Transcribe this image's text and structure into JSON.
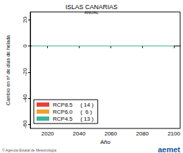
{
  "chart_data": {
    "type": "line",
    "title": "ISLAS CANARIAS",
    "subtitle": "ANUAL",
    "x_label": "Año",
    "y_label": "Cambio en nº de días de helada",
    "x": [
      2010,
      2020,
      2030,
      2040,
      2050,
      2060,
      2070,
      2080,
      2090,
      2100
    ],
    "series": [
      {
        "name": "RCP8.5     ( 14 )",
        "color": "#e8403a",
        "values": [
          0,
          0,
          0,
          0,
          0,
          0,
          0,
          0,
          0,
          0
        ]
      },
      {
        "name": "RCP6.0     (  6 )",
        "color": "#f0a030",
        "values": [
          0,
          0,
          0,
          0,
          0,
          0,
          0,
          0,
          0,
          0
        ]
      },
      {
        "name": "RCP4.5     ( 13 )",
        "color": "#3cb4a0",
        "values": [
          0,
          0,
          0,
          0,
          0,
          0,
          0,
          0,
          0,
          0
        ]
      }
    ],
    "xlim": [
      2009,
      2104
    ],
    "xticks": [
      2020,
      2040,
      2060,
      2080,
      2100
    ],
    "ylim": [
      -63,
      26
    ],
    "yticks": [
      -60,
      -40,
      -20,
      0,
      20
    ],
    "legend": "bottom-left",
    "grid": false,
    "footer": "© Agencia Estatal de Meteorología",
    "logo": "aemet"
  }
}
